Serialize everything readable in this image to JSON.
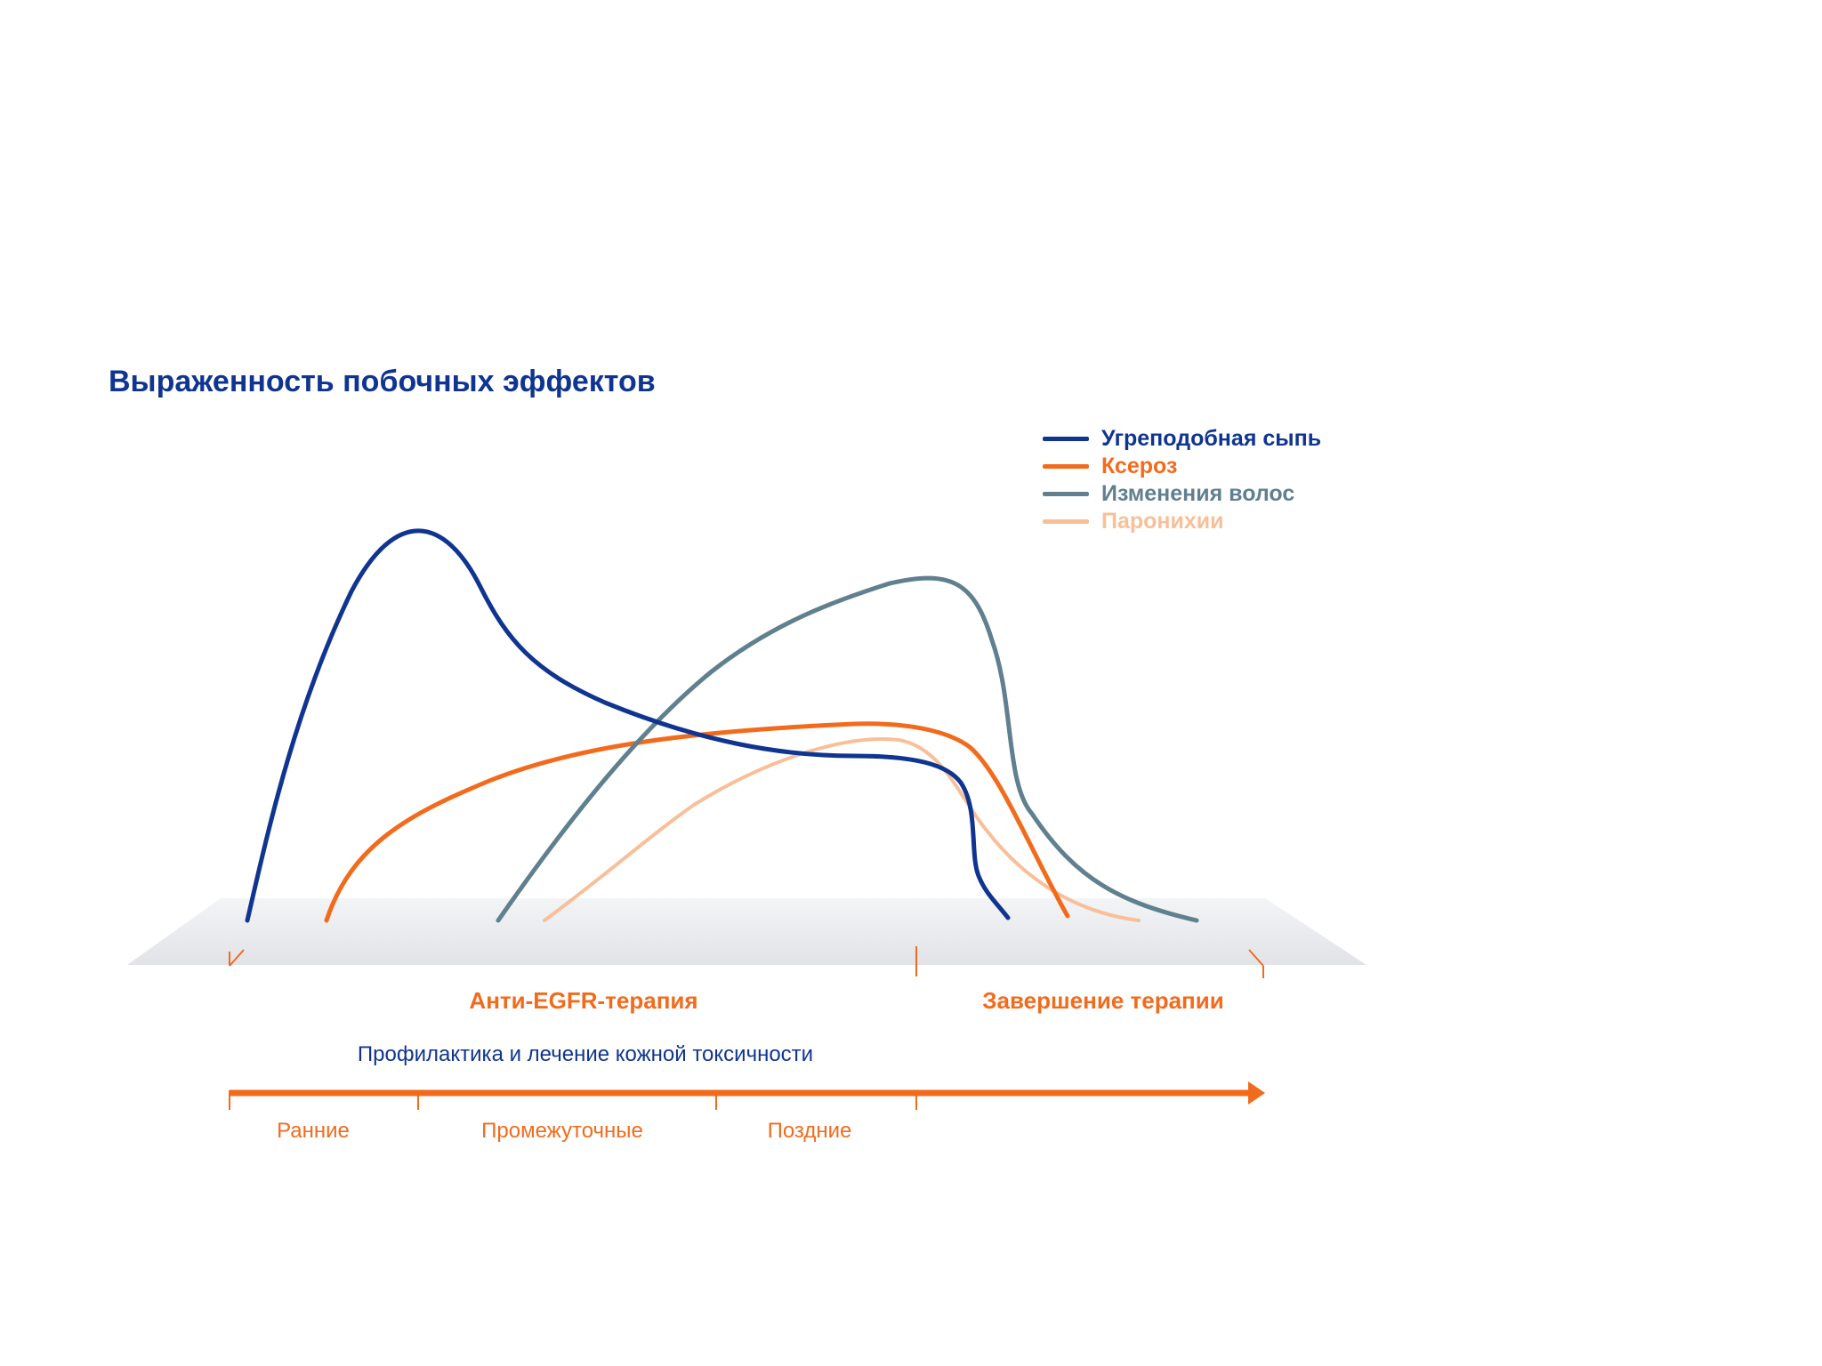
{
  "title": "Выраженность побочных эффектов",
  "legend": [
    {
      "label": "Угреподобная сыпь",
      "color": "#0f3591"
    },
    {
      "label": "Ксероз",
      "color": "#f26b1d"
    },
    {
      "label": "Изменения волос",
      "color": "#60808f"
    },
    {
      "label": "Паронихии",
      "color": "#f8bf99"
    }
  ],
  "phases": {
    "therapy": "Анти-EGFR-терапия",
    "completion": "Завершение терапии"
  },
  "track": {
    "label": "Профилактика и лечение кожной токсичности",
    "stages": [
      "Ранние",
      "Промежуточные",
      "Поздние"
    ]
  },
  "colors": {
    "accent": "#f26b1d",
    "brand": "#0f3591",
    "platform": "#e6e7ea"
  }
}
